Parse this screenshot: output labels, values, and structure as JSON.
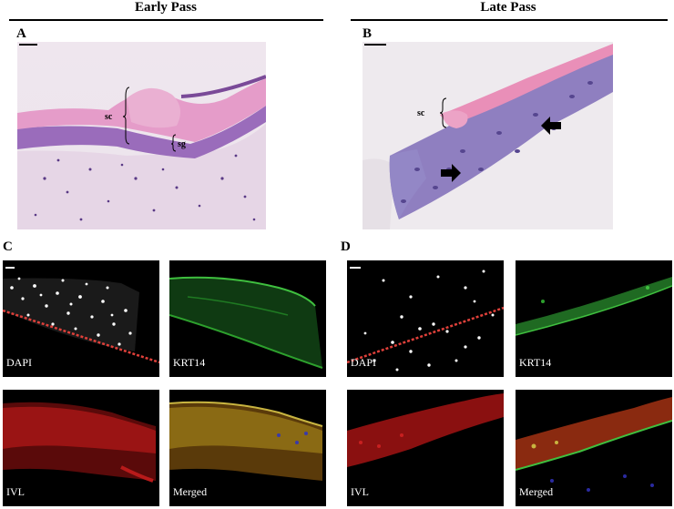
{
  "columns": {
    "left_title": "Early Pass",
    "right_title": "Late Pass"
  },
  "panels": {
    "A": "A",
    "B": "B",
    "C": "C",
    "D": "D"
  },
  "annotations": {
    "A_sc": "sc",
    "A_sg": "sg",
    "B_sc": "sc"
  },
  "fluorescence_labels": {
    "C_dapi": "DAPI",
    "C_krt14": "KRT14",
    "C_ivl": "IVL",
    "C_merged": "Merged",
    "D_dapi": "DAPI",
    "D_krt14": "KRT14",
    "D_ivl": "IVL",
    "D_merged": "Merged"
  },
  "colors": {
    "he_pink": "#e79ac8",
    "he_purple": "#8a5fb0",
    "he_background": "#efe8ee",
    "dapi": "#ffffff",
    "krt14": "#34b334",
    "ivl": "#c81a1a",
    "dotted_line": "#e0403a"
  }
}
